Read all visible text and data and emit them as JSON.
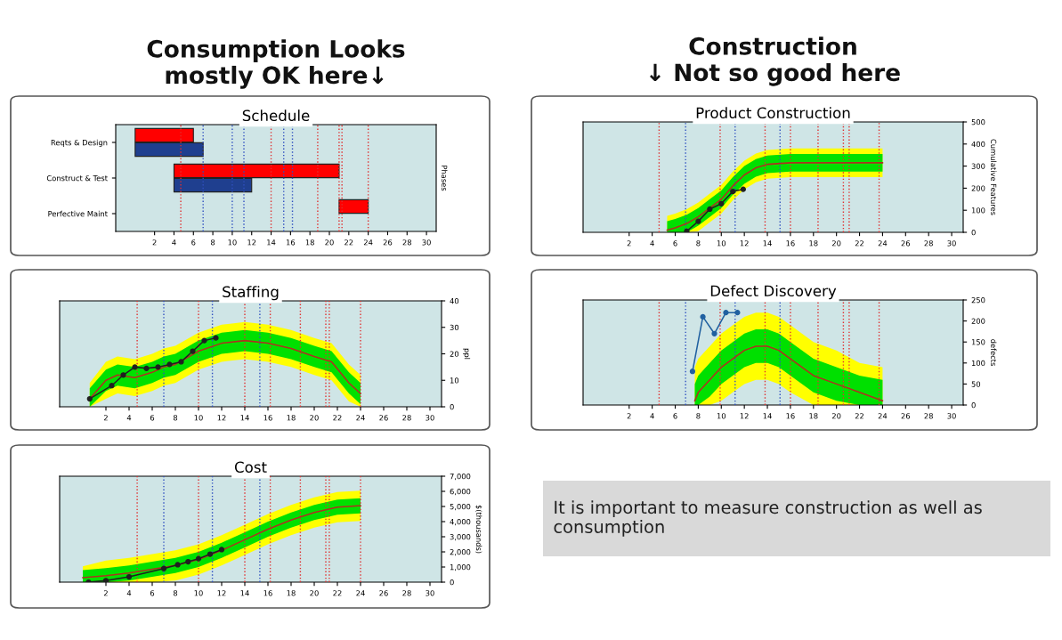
{
  "chart_data": [
    {
      "type": "bar",
      "title": "Schedule",
      "orientation": "horizontal",
      "ylabel": "Phases",
      "annotations": [
        "Consumption Looks\nmostly OK here↓"
      ],
      "categories": [
        "Reqts & Design",
        "Construct & Test",
        "Perfective Maint"
      ],
      "series": [
        {
          "color": "#ff0000",
          "values": [
            6,
            17,
            3
          ],
          "base": [
            0,
            4,
            21
          ]
        },
        {
          "color": "#1f3f8f",
          "values": [
            7,
            8,
            null
          ],
          "base": [
            0,
            4,
            null
          ]
        }
      ],
      "xlim": [
        -2,
        31
      ],
      "xticks": [
        2,
        4,
        6,
        8,
        10,
        12,
        14,
        16,
        18,
        20,
        22,
        24,
        26,
        28,
        30
      ],
      "ref_lines": [
        {
          "axis": "x",
          "value": 4.7,
          "color": "#e03030",
          "line_style": "dotted"
        },
        {
          "axis": "x",
          "value": 7,
          "color": "#3050c0",
          "line_style": "dotted"
        },
        {
          "axis": "x",
          "value": 10,
          "color": "#3050c0",
          "line_style": "dotted"
        },
        {
          "axis": "x",
          "value": 11.2,
          "color": "#3050c0",
          "line_style": "dotted"
        },
        {
          "axis": "x",
          "value": 14,
          "color": "#e03030",
          "line_style": "dotted"
        },
        {
          "axis": "x",
          "value": 15.3,
          "color": "#3050c0",
          "line_style": "dotted"
        },
        {
          "axis": "x",
          "value": 16.2,
          "color": "#3050c0",
          "line_style": "dotted"
        },
        {
          "axis": "x",
          "value": 18.8,
          "color": "#e03030",
          "line_style": "dotted"
        },
        {
          "axis": "x",
          "value": 21,
          "color": "#e03030",
          "line_style": "dotted"
        },
        {
          "axis": "x",
          "value": 21.3,
          "color": "#e03030",
          "line_style": "dotted"
        },
        {
          "axis": "x",
          "value": 24,
          "color": "#e03030",
          "line_style": "dotted"
        }
      ]
    },
    {
      "type": "line",
      "title": "Staffing",
      "ylabel": "ppl",
      "series": [
        {
          "type": "area",
          "color": "#ffff00",
          "x": [
            0.6,
            2,
            3,
            4.5,
            6,
            7,
            8,
            10,
            12,
            14,
            16,
            18,
            20,
            21.5,
            23,
            24
          ],
          "values": [
            null,
            null,
            null,
            null,
            null,
            null,
            null,
            null,
            null,
            null,
            null,
            null,
            null,
            null,
            null,
            null
          ],
          "lower": [
            0,
            3,
            5,
            4,
            6,
            8,
            9,
            14,
            17,
            18,
            17,
            15,
            12,
            10,
            2,
            0
          ],
          "upper": [
            9,
            17,
            19,
            18,
            20,
            22,
            23,
            28,
            31,
            32,
            31,
            29,
            26,
            24,
            16,
            12
          ]
        },
        {
          "type": "area",
          "color": "#00e000",
          "x": [
            0.6,
            2,
            3,
            4.5,
            6,
            7,
            8,
            10,
            12,
            14,
            16,
            18,
            20,
            21.5,
            23,
            24
          ],
          "values": [
            null,
            null,
            null,
            null,
            null,
            null,
            null,
            null,
            null,
            null,
            null,
            null,
            null,
            null,
            null,
            null
          ],
          "lower": [
            0,
            6,
            8,
            7,
            9,
            11,
            12,
            17,
            20,
            21,
            20,
            18,
            15,
            13,
            5,
            1
          ],
          "upper": [
            7,
            14,
            16,
            15,
            17,
            19,
            20,
            25,
            28,
            29,
            28,
            26,
            23,
            21,
            13,
            9
          ]
        },
        {
          "type": "line",
          "color": "#b03020",
          "x": [
            0.6,
            2,
            3,
            4.5,
            6,
            7,
            8,
            10,
            12,
            14,
            16,
            18,
            20,
            21.5,
            23,
            24
          ],
          "values": [
            3,
            10,
            12,
            11,
            13,
            15,
            16,
            21,
            24,
            25,
            24,
            22,
            19,
            17,
            9,
            5
          ]
        },
        {
          "type": "line",
          "color": "#202020",
          "marker": "circle",
          "x": [
            0.6,
            2.5,
            3.5,
            4.5,
            5.5,
            6.5,
            7.5,
            8.5,
            9.5,
            10.5,
            11.5
          ],
          "values": [
            3,
            8,
            12,
            15,
            14.5,
            15,
            16,
            17,
            21,
            25,
            26
          ]
        }
      ],
      "xlim": [
        -2,
        31
      ],
      "xticks": [
        2,
        4,
        6,
        8,
        10,
        12,
        14,
        16,
        18,
        20,
        22,
        24,
        26,
        28,
        30
      ],
      "ylim": [
        0,
        40
      ],
      "yticks": [
        0,
        10,
        20,
        30,
        40
      ],
      "ref_lines": [
        {
          "axis": "x",
          "value": 4.7,
          "color": "#e03030",
          "line_style": "dotted"
        },
        {
          "axis": "x",
          "value": 7,
          "color": "#3050c0",
          "line_style": "dotted"
        },
        {
          "axis": "x",
          "value": 10,
          "color": "#e03030",
          "line_style": "dotted"
        },
        {
          "axis": "x",
          "value": 11.2,
          "color": "#3050c0",
          "line_style": "dotted"
        },
        {
          "axis": "x",
          "value": 14,
          "color": "#e03030",
          "line_style": "dotted"
        },
        {
          "axis": "x",
          "value": 15.3,
          "color": "#3050c0",
          "line_style": "dotted"
        },
        {
          "axis": "x",
          "value": 16.2,
          "color": "#e03030",
          "line_style": "dotted"
        },
        {
          "axis": "x",
          "value": 18.8,
          "color": "#e03030",
          "line_style": "dotted"
        },
        {
          "axis": "x",
          "value": 21,
          "color": "#e03030",
          "line_style": "dotted"
        },
        {
          "axis": "x",
          "value": 21.3,
          "color": "#e03030",
          "line_style": "dotted"
        },
        {
          "axis": "x",
          "value": 24,
          "color": "#e03030",
          "line_style": "dotted"
        }
      ]
    },
    {
      "type": "line",
      "title": "Cost",
      "ylabel": "$(thousands)",
      "series": [
        {
          "type": "area",
          "color": "#ffff00",
          "x": [
            0,
            2,
            4,
            6,
            8,
            10,
            12,
            14,
            16,
            18,
            20,
            22,
            24
          ],
          "values": [
            null,
            null,
            null,
            null,
            null,
            null,
            null,
            null,
            null,
            null,
            null,
            null,
            null
          ],
          "lower": [
            0,
            0,
            0,
            0,
            100,
            500,
            1100,
            1800,
            2500,
            3100,
            3600,
            3950,
            4050
          ],
          "upper": [
            1050,
            1420,
            1600,
            1850,
            2100,
            2500,
            3100,
            3800,
            4500,
            5100,
            5600,
            5950,
            6050
          ]
        },
        {
          "type": "area",
          "color": "#00e000",
          "x": [
            0,
            2,
            4,
            6,
            8,
            10,
            12,
            14,
            16,
            18,
            20,
            22,
            24
          ],
          "values": [
            null,
            null,
            null,
            null,
            null,
            null,
            null,
            null,
            null,
            null,
            null,
            null,
            null
          ],
          "lower": [
            0,
            0,
            100,
            350,
            600,
            1000,
            1600,
            2300,
            3000,
            3600,
            4100,
            4450,
            4550
          ],
          "upper": [
            800,
            920,
            1100,
            1350,
            1600,
            2000,
            2600,
            3300,
            4000,
            4600,
            5100,
            5450,
            5550
          ]
        },
        {
          "type": "line",
          "color": "#b03020",
          "x": [
            0,
            2,
            4,
            6,
            8,
            10,
            12,
            14,
            16,
            18,
            20,
            22,
            24
          ],
          "values": [
            300,
            420,
            600,
            850,
            1100,
            1500,
            2100,
            2800,
            3500,
            4100,
            4600,
            4950,
            5050
          ]
        },
        {
          "type": "line",
          "color": "#202020",
          "marker": "circle",
          "x": [
            0.5,
            2,
            4,
            7,
            8.2,
            9.1,
            10,
            11,
            12
          ],
          "values": [
            0,
            100,
            350,
            900,
            1150,
            1350,
            1550,
            1850,
            2150
          ]
        }
      ],
      "xlim": [
        -2,
        31
      ],
      "xticks": [
        2,
        4,
        6,
        8,
        10,
        12,
        14,
        16,
        18,
        20,
        22,
        24,
        26,
        28,
        30
      ],
      "ylim": [
        0,
        7000
      ],
      "yticks": [
        0,
        {
          "value": 1000,
          "label": "1,000"
        },
        {
          "value": 2000,
          "label": "2,000"
        },
        {
          "value": 3000,
          "label": "3,000"
        },
        {
          "value": 4000,
          "label": "4,000"
        },
        {
          "value": 5000,
          "label": "5,000"
        },
        {
          "value": 6000,
          "label": "6,000"
        },
        {
          "value": 7000,
          "label": "7,000"
        }
      ],
      "ref_lines": [
        {
          "axis": "x",
          "value": 4.7,
          "color": "#e03030",
          "line_style": "dotted"
        },
        {
          "axis": "x",
          "value": 7,
          "color": "#3050c0",
          "line_style": "dotted"
        },
        {
          "axis": "x",
          "value": 10,
          "color": "#e03030",
          "line_style": "dotted"
        },
        {
          "axis": "x",
          "value": 11.2,
          "color": "#3050c0",
          "line_style": "dotted"
        },
        {
          "axis": "x",
          "value": 14,
          "color": "#e03030",
          "line_style": "dotted"
        },
        {
          "axis": "x",
          "value": 15.3,
          "color": "#3050c0",
          "line_style": "dotted"
        },
        {
          "axis": "x",
          "value": 16.2,
          "color": "#e03030",
          "line_style": "dotted"
        },
        {
          "axis": "x",
          "value": 18.8,
          "color": "#e03030",
          "line_style": "dotted"
        },
        {
          "axis": "x",
          "value": 21,
          "color": "#e03030",
          "line_style": "dotted"
        },
        {
          "axis": "x",
          "value": 21.3,
          "color": "#e03030",
          "line_style": "dotted"
        },
        {
          "axis": "x",
          "value": 24,
          "color": "#e03030",
          "line_style": "dotted"
        }
      ]
    },
    {
      "type": "line",
      "title": "Product Construction",
      "ylabel": "Cumulative Features",
      "annotations": [
        "Construction\n↓ Not so good here"
      ],
      "series": [
        {
          "type": "area",
          "color": "#ffff00",
          "x": [
            5.3,
            6,
            7,
            8,
            9,
            10,
            11,
            12,
            13,
            14,
            16,
            18,
            20,
            22,
            24
          ],
          "values": [
            null,
            null,
            null,
            null,
            null,
            null,
            null,
            null,
            null,
            null,
            null,
            null,
            null,
            null,
            null
          ],
          "lower": [
            0,
            0,
            0,
            5,
            45,
            85,
            145,
            195,
            227,
            243,
            250,
            250,
            250,
            250,
            250
          ],
          "upper": [
            75,
            85,
            105,
            135,
            175,
            215,
            275,
            325,
            357,
            373,
            380,
            380,
            380,
            380,
            380
          ]
        },
        {
          "type": "area",
          "color": "#00e000",
          "x": [
            5.3,
            6,
            7,
            8,
            9,
            10,
            11,
            12,
            13,
            14,
            16,
            18,
            20,
            22,
            24
          ],
          "values": [
            null,
            null,
            null,
            null,
            null,
            null,
            null,
            null,
            null,
            null,
            null,
            null,
            null,
            null,
            null
          ],
          "lower": [
            0,
            0,
            0,
            30,
            70,
            110,
            170,
            220,
            252,
            268,
            275,
            275,
            275,
            275,
            275
          ],
          "upper": [
            50,
            60,
            80,
            110,
            150,
            190,
            250,
            300,
            332,
            348,
            355,
            355,
            355,
            355,
            355
          ]
        },
        {
          "type": "line",
          "color": "#b03020",
          "x": [
            5.3,
            6,
            7,
            8,
            9,
            10,
            11,
            12,
            13,
            14,
            16,
            18,
            20,
            22,
            24
          ],
          "values": [
            10,
            20,
            40,
            70,
            110,
            150,
            210,
            260,
            292,
            308,
            315,
            315,
            315,
            315,
            315
          ]
        },
        {
          "type": "line",
          "color": "#202020",
          "marker": "circle",
          "x": [
            7,
            8,
            9,
            10,
            11,
            11.9
          ],
          "values": [
            5,
            50,
            105,
            130,
            185,
            195
          ]
        }
      ],
      "xlim": [
        -2,
        31
      ],
      "xticks": [
        2,
        4,
        6,
        8,
        10,
        12,
        14,
        16,
        18,
        20,
        22,
        24,
        26,
        28,
        30
      ],
      "ylim": [
        0,
        500
      ],
      "yticks": [
        0,
        100,
        200,
        300,
        400,
        500
      ],
      "ref_lines": [
        {
          "axis": "x",
          "value": 4.6,
          "color": "#e03030",
          "line_style": "dotted"
        },
        {
          "axis": "x",
          "value": 6.9,
          "color": "#3050c0",
          "line_style": "dotted"
        },
        {
          "axis": "x",
          "value": 9.9,
          "color": "#e03030",
          "line_style": "dotted"
        },
        {
          "axis": "x",
          "value": 11.2,
          "color": "#3050c0",
          "line_style": "dotted"
        },
        {
          "axis": "x",
          "value": 13.8,
          "color": "#e03030",
          "line_style": "dotted"
        },
        {
          "axis": "x",
          "value": 15.1,
          "color": "#3050c0",
          "line_style": "dotted"
        },
        {
          "axis": "x",
          "value": 16,
          "color": "#e03030",
          "line_style": "dotted"
        },
        {
          "axis": "x",
          "value": 18.4,
          "color": "#e03030",
          "line_style": "dotted"
        },
        {
          "axis": "x",
          "value": 20.6,
          "color": "#e03030",
          "line_style": "dotted"
        },
        {
          "axis": "x",
          "value": 21.1,
          "color": "#e03030",
          "line_style": "dotted"
        },
        {
          "axis": "x",
          "value": 23.7,
          "color": "#e03030",
          "line_style": "dotted"
        }
      ]
    },
    {
      "type": "line",
      "title": "Defect Discovery",
      "ylabel": "defects",
      "series": [
        {
          "type": "area",
          "color": "#ffff00",
          "x": [
            7.7,
            8,
            9,
            10,
            11,
            12,
            13,
            14,
            15,
            16,
            18,
            20,
            22,
            24
          ],
          "values": [
            null,
            null,
            null,
            null,
            null,
            null,
            null,
            null,
            null,
            null,
            null,
            null,
            null,
            null
          ],
          "lower": [
            0,
            0,
            0,
            10,
            30,
            50,
            60,
            60,
            50,
            30,
            0,
            0,
            0,
            0
          ],
          "upper": [
            90,
            110,
            140,
            170,
            190,
            210,
            220,
            220,
            210,
            190,
            150,
            130,
            100,
            90
          ]
        },
        {
          "type": "area",
          "color": "#00e000",
          "x": [
            7.7,
            8,
            9,
            10,
            11,
            12,
            13,
            14,
            15,
            16,
            18,
            20,
            22,
            24
          ],
          "values": [
            null,
            null,
            null,
            null,
            null,
            null,
            null,
            null,
            null,
            null,
            null,
            null,
            null,
            null
          ],
          "lower": [
            0,
            0,
            20,
            50,
            70,
            90,
            100,
            100,
            90,
            70,
            30,
            10,
            0,
            0
          ],
          "upper": [
            50,
            70,
            100,
            130,
            150,
            170,
            180,
            180,
            170,
            150,
            110,
            90,
            70,
            60
          ]
        },
        {
          "type": "line",
          "color": "#b03020",
          "x": [
            7.7,
            8,
            9,
            10,
            11,
            12,
            13,
            14,
            15,
            16,
            18,
            20,
            22,
            24
          ],
          "values": [
            10,
            30,
            60,
            90,
            110,
            130,
            140,
            140,
            130,
            110,
            70,
            50,
            30,
            10
          ]
        },
        {
          "type": "line",
          "color": "#2060a0",
          "marker": "circle",
          "x": [
            7.5,
            8.4,
            9.4,
            10.4,
            11.4
          ],
          "values": [
            80,
            210,
            170,
            220,
            220
          ]
        }
      ],
      "xlim": [
        -2,
        31
      ],
      "xticks": [
        2,
        4,
        6,
        8,
        10,
        12,
        14,
        16,
        18,
        20,
        22,
        24,
        26,
        28,
        30
      ],
      "ylim": [
        0,
        250
      ],
      "yticks": [
        0,
        50,
        100,
        150,
        200,
        250
      ],
      "ref_lines": [
        {
          "axis": "x",
          "value": 4.6,
          "color": "#e03030",
          "line_style": "dotted"
        },
        {
          "axis": "x",
          "value": 6.9,
          "color": "#3050c0",
          "line_style": "dotted"
        },
        {
          "axis": "x",
          "value": 9.9,
          "color": "#e03030",
          "line_style": "dotted"
        },
        {
          "axis": "x",
          "value": 11.2,
          "color": "#3050c0",
          "line_style": "dotted"
        },
        {
          "axis": "x",
          "value": 13.8,
          "color": "#e03030",
          "line_style": "dotted"
        },
        {
          "axis": "x",
          "value": 15.1,
          "color": "#3050c0",
          "line_style": "dotted"
        },
        {
          "axis": "x",
          "value": 16,
          "color": "#e03030",
          "line_style": "dotted"
        },
        {
          "axis": "x",
          "value": 18.4,
          "color": "#e03030",
          "line_style": "dotted"
        },
        {
          "axis": "x",
          "value": 20.6,
          "color": "#e03030",
          "line_style": "dotted"
        },
        {
          "axis": "x",
          "value": 21.1,
          "color": "#e03030",
          "line_style": "dotted"
        },
        {
          "axis": "x",
          "value": 23.7,
          "color": "#e03030",
          "line_style": "dotted"
        }
      ]
    },
    {
      "type": "other",
      "annotations": [
        "It is important to measure construction as well as consumption"
      ]
    }
  ]
}
